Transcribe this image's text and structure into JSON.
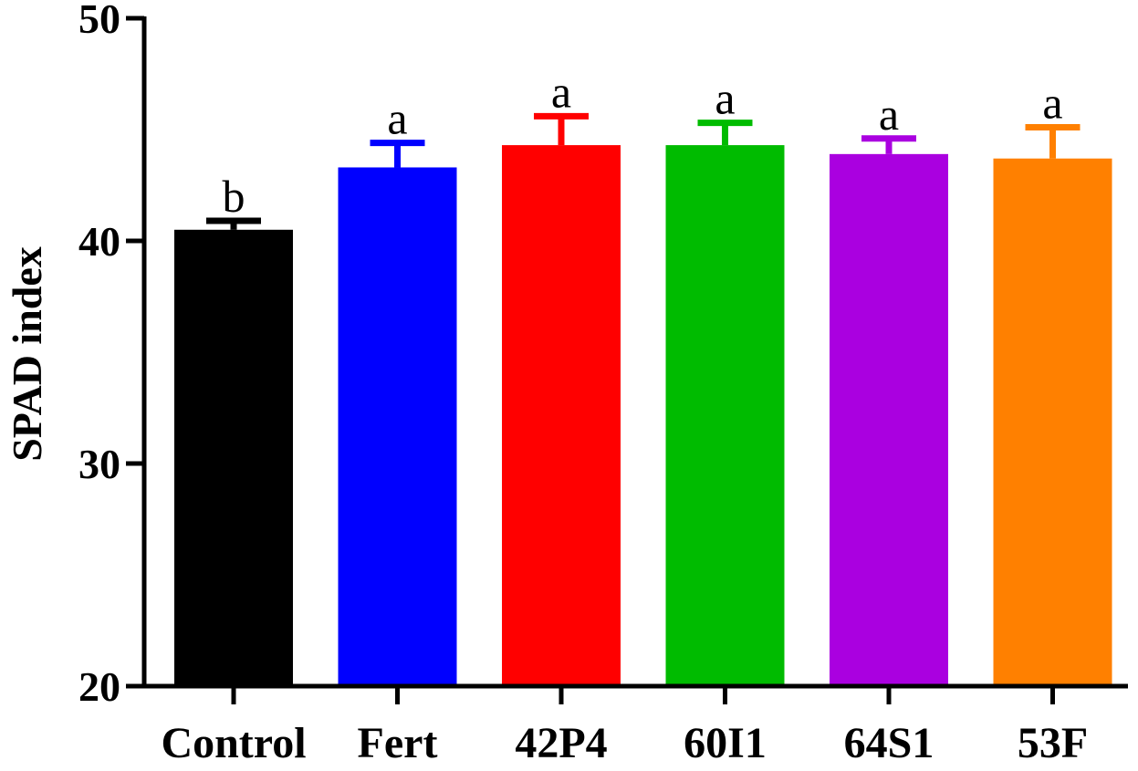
{
  "chart_data": {
    "type": "bar",
    "title": "",
    "xlabel": "",
    "ylabel": "SPAD index",
    "ylim": [
      20,
      50
    ],
    "yticks": [
      20,
      30,
      40,
      50
    ],
    "grid": false,
    "categories": [
      "Control",
      "Fert",
      "42P4",
      "60I1",
      "64S1",
      "53F"
    ],
    "values": [
      40.5,
      43.3,
      44.3,
      44.3,
      43.9,
      43.7
    ],
    "errors": [
      0.4,
      1.1,
      1.3,
      1.0,
      0.7,
      1.4
    ],
    "letters": [
      "b",
      "a",
      "a",
      "a",
      "a",
      "a"
    ],
    "colors": [
      "#000000",
      "#0000ff",
      "#ff0000",
      "#00bb00",
      "#aa00e0",
      "#ff8000"
    ]
  }
}
